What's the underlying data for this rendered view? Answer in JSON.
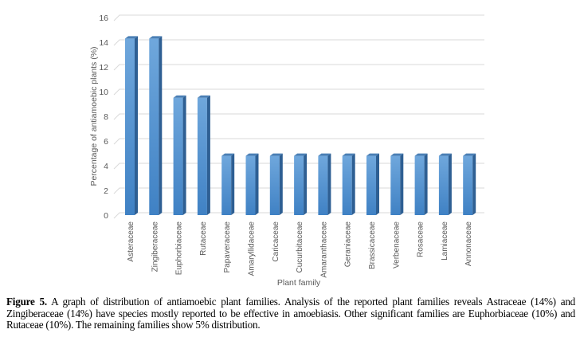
{
  "chart_data": {
    "type": "bar",
    "title": "",
    "xlabel": "Plant family",
    "ylabel": "Percentage of antiamoebic plants (%)",
    "ylim": [
      0,
      16
    ],
    "yticks": [
      0,
      2,
      4,
      6,
      8,
      10,
      12,
      14,
      16
    ],
    "grid": true,
    "categories": [
      "Asteraceae",
      "Zingiberaceae",
      "Euphorbiaceae",
      "Rutaceae",
      "Papaveraceae",
      "Amaryllidaceae",
      "Caricaceae",
      "Cucurbitaceae",
      "Amaranthaceae",
      "Geraniaceae",
      "Brassicaceae",
      "Verbenaceae",
      "Rosaceae",
      "Lamiaceae",
      "Annonaceae"
    ],
    "values": [
      14.3,
      14.3,
      9.5,
      9.5,
      4.8,
      4.8,
      4.8,
      4.8,
      4.8,
      4.8,
      4.8,
      4.8,
      4.8,
      4.8,
      4.8
    ],
    "bar_color": "#5b9bd5"
  },
  "caption": {
    "label": "Figure 5.",
    "text": " A graph of distribution of antiamoebic plant families. Analysis of the reported plant families reveals Astraceae (14%) and Zingiberaceae (14%) have species mostly reported to be effective in amoebiasis. Other significant families are Euphorbiaceae (10%) and Rutaceae (10%). The remaining families show 5% distribution."
  }
}
